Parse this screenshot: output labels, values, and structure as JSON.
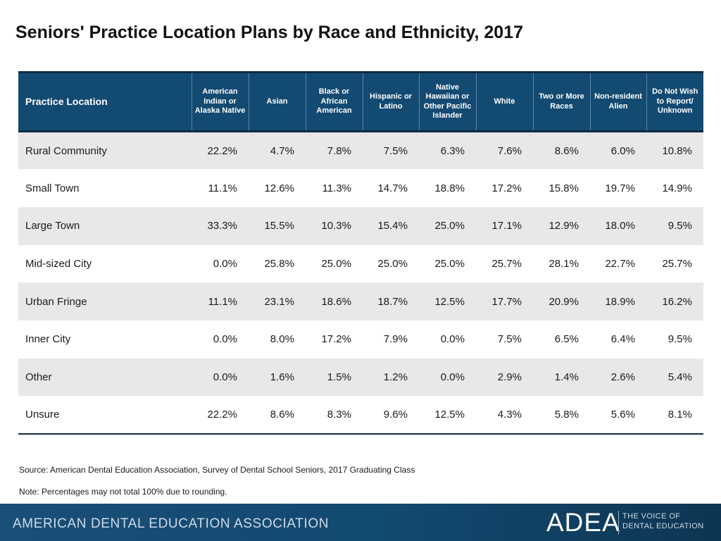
{
  "title": "Seniors' Practice Location Plans by Race and Ethnicity, 2017",
  "table": {
    "headers": [
      "Practice Location",
      "American Indian or Alaska Native",
      "Asian",
      "Black or African American",
      "Hispanic or Latino",
      "Native Hawaiian or Other Pacific Islander",
      "White",
      "Two or More Races",
      "Non-resident Alien",
      "Do Not Wish to Report/ Unknown"
    ],
    "rows": [
      [
        "Rural Community",
        "22.2%",
        "4.7%",
        "7.8%",
        "7.5%",
        "6.3%",
        "7.6%",
        "8.6%",
        "6.0%",
        "10.8%"
      ],
      [
        "Small Town",
        "11.1%",
        "12.6%",
        "11.3%",
        "14.7%",
        "18.8%",
        "17.2%",
        "15.8%",
        "19.7%",
        "14.9%"
      ],
      [
        "Large Town",
        "33.3%",
        "15.5%",
        "10.3%",
        "15.4%",
        "25.0%",
        "17.1%",
        "12.9%",
        "18.0%",
        "9.5%"
      ],
      [
        "Mid-sized City",
        "0.0%",
        "25.8%",
        "25.0%",
        "25.0%",
        "25.0%",
        "25.7%",
        "28.1%",
        "22.7%",
        "25.7%"
      ],
      [
        "Urban Fringe",
        "11.1%",
        "23.1%",
        "18.6%",
        "18.7%",
        "12.5%",
        "17.7%",
        "20.9%",
        "18.9%",
        "16.2%"
      ],
      [
        "Inner City",
        "0.0%",
        "8.0%",
        "17.2%",
        "7.9%",
        "0.0%",
        "7.5%",
        "6.5%",
        "6.4%",
        "9.5%"
      ],
      [
        "Other",
        "0.0%",
        "1.6%",
        "1.5%",
        "1.2%",
        "0.0%",
        "2.9%",
        "1.4%",
        "2.6%",
        "5.4%"
      ],
      [
        "Unsure",
        "22.2%",
        "8.6%",
        "8.3%",
        "9.6%",
        "12.5%",
        "4.3%",
        "5.8%",
        "5.6%",
        "8.1%"
      ]
    ]
  },
  "source": "Source: American Dental Education Association, Survey of Dental School Seniors, 2017 Graduating Class",
  "note": "Note: Percentages may not total 100% due to rounding.",
  "footer": {
    "organization": "AMERICAN DENTAL EDUCATION ASSOCIATION",
    "logo_text": "ADEA",
    "tagline_line1": "THE VOICE OF",
    "tagline_line2": "DENTAL EDUCATION"
  },
  "colors": {
    "header_bg": "#134a72",
    "footer_bg": "#12496f",
    "row_alt_bg": "#e8e8e8"
  }
}
